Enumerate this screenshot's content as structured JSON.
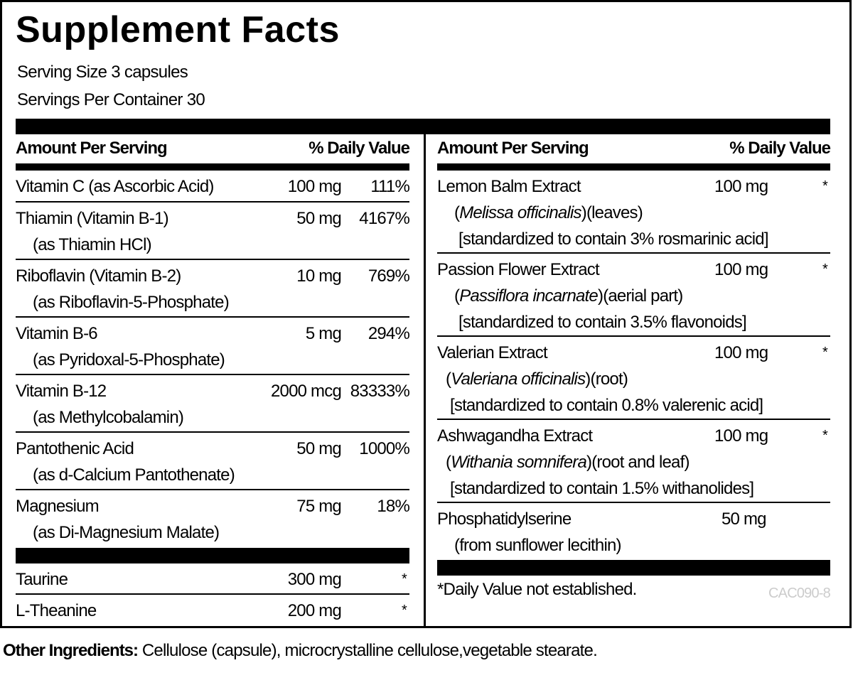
{
  "title": "Supplement Facts",
  "serving_size": "Serving Size 3 capsules",
  "servings_per_container": "Servings Per Container 30",
  "header": {
    "amount": "Amount Per Serving",
    "dv": "% Daily Value"
  },
  "left": [
    {
      "name": "Vitamin C (as Ascorbic Acid)",
      "sub": "",
      "amount": "100 mg",
      "dv": "111%"
    },
    {
      "name": "Thiamin (Vitamin B-1)",
      "sub": "(as Thiamin HCl)",
      "amount": "50 mg",
      "dv": "4167%"
    },
    {
      "name": "Riboflavin (Vitamin B-2)",
      "sub": "(as Riboflavin-5-Phosphate)",
      "amount": "10 mg",
      "dv": "769%"
    },
    {
      "name": "Vitamin B-6",
      "sub": "(as Pyridoxal-5-Phosphate)",
      "amount": "5 mg",
      "dv": "294%"
    },
    {
      "name": "Vitamin B-12",
      "sub": "(as Methylcobalamin)",
      "amount": "2000 mcg",
      "dv": "83333%"
    },
    {
      "name": "Pantothenic Acid",
      "sub": "(as d-Calcium Pantothenate)",
      "amount": "50 mg",
      "dv": "1000%"
    },
    {
      "name": "Magnesium",
      "sub": "(as Di-Magnesium Malate)",
      "amount": "75 mg",
      "dv": "18%"
    }
  ],
  "left_extra": [
    {
      "name": "Taurine",
      "amount": "300 mg",
      "dv": "*"
    },
    {
      "name": "L-Theanine",
      "amount": "200 mg",
      "dv": "*"
    }
  ],
  "right": [
    {
      "name": "Lemon Balm Extract",
      "latin": "Melissa officinalis",
      "part": "(leaves)",
      "std": "[standardized to contain 3% rosmarinic acid]",
      "amount": "100 mg",
      "dv": "*"
    },
    {
      "name": "Passion Flower Extract",
      "latin": "Passiflora incarnate",
      "part": "(aerial part)",
      "std": "[standardized to contain 3.5% flavonoids]",
      "amount": "100 mg",
      "dv": "*"
    },
    {
      "name": "Valerian Extract",
      "latin": "Valeriana officinalis",
      "part": "(root)",
      "std": "[standardized to contain 0.8% valerenic acid]",
      "amount": "100 mg",
      "dv": "*"
    },
    {
      "name": "Ashwagandha Extract",
      "latin": "Withania somnifera",
      "part": "(root and leaf)",
      "std": "[standardized to contain 1.5% withanolides]",
      "amount": "100 mg",
      "dv": "*"
    }
  ],
  "phos": {
    "name": "Phosphatidylserine",
    "sub": "(from sunflower lecithin)",
    "amount": "50 mg"
  },
  "footnote": "*Daily Value not established.",
  "code": "CAC090-8",
  "other": {
    "label": "Other Ingredients:",
    "text": " Cellulose (capsule), microcrystalline cellulose,vegetable stearate."
  }
}
